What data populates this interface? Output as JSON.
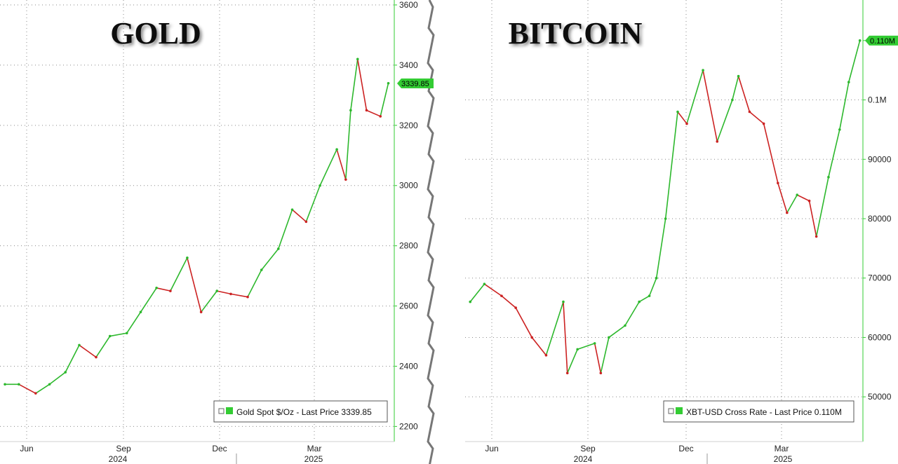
{
  "chart_data": [
    {
      "type": "line",
      "title": "GOLD",
      "legend": "Gold Spot $/Oz - Last Price 3339.85",
      "last_price_tag": "3339.85",
      "y_ticks": [
        "3600",
        "3400",
        "3200",
        "3000",
        "2800",
        "2600",
        "2400",
        "2200"
      ],
      "ylim": [
        2180,
        3600
      ],
      "x_ticks": [
        "Jun",
        "Sep",
        "Dec",
        "Mar"
      ],
      "years": [
        "2024",
        "2025"
      ],
      "series": [
        {
          "x": [
            "2024-05-01",
            "2024-05-15",
            "2024-06-01",
            "2024-06-15",
            "2024-07-01",
            "2024-07-15",
            "2024-08-01",
            "2024-08-15",
            "2024-09-01",
            "2024-09-15",
            "2024-10-01",
            "2024-10-15",
            "2024-11-01",
            "2024-11-15",
            "2024-12-01",
            "2024-12-15",
            "2025-01-01",
            "2025-01-15",
            "2025-02-01",
            "2025-02-15",
            "2025-03-01",
            "2025-03-15",
            "2025-04-01",
            "2025-04-10",
            "2025-04-15",
            "2025-04-22",
            "2025-05-01",
            "2025-05-15",
            "2025-05-23"
          ],
          "values": [
            2340,
            2340,
            2310,
            2340,
            2380,
            2470,
            2430,
            2500,
            2510,
            2580,
            2660,
            2650,
            2760,
            2580,
            2650,
            2640,
            2630,
            2720,
            2790,
            2920,
            2880,
            3000,
            3120,
            3020,
            3250,
            3420,
            3250,
            3230,
            3339.85
          ]
        }
      ],
      "colors": {
        "up": "#2db82d",
        "down": "#cc2222",
        "axis": "#33cc33",
        "tag": "#33cc33"
      }
    },
    {
      "type": "line",
      "title": "BITCOIN",
      "legend": "XBT-USD Cross Rate - Last Price 0.110M",
      "last_price_tag": "0.110M",
      "y_ticks": [
        "0.110M",
        "0.1M",
        "90000",
        "80000",
        "70000",
        "60000",
        "50000"
      ],
      "y_tick_values": [
        110000,
        100000,
        90000,
        80000,
        70000,
        60000,
        50000
      ],
      "ylim": [
        44000,
        116000
      ],
      "x_ticks": [
        "Jun",
        "Sep",
        "Dec",
        "Mar"
      ],
      "years": [
        "2024",
        "2025"
      ],
      "series": [
        {
          "x": [
            "2024-05-01",
            "2024-05-15",
            "2024-06-01",
            "2024-06-15",
            "2024-07-01",
            "2024-07-15",
            "2024-08-01",
            "2024-08-05",
            "2024-08-15",
            "2024-09-01",
            "2024-09-07",
            "2024-09-15",
            "2024-10-01",
            "2024-10-15",
            "2024-10-25",
            "2024-11-01",
            "2024-11-10",
            "2024-11-22",
            "2024-12-01",
            "2024-12-17",
            "2024-12-31",
            "2025-01-15",
            "2025-01-21",
            "2025-02-01",
            "2025-02-15",
            "2025-03-01",
            "2025-03-10",
            "2025-03-20",
            "2025-04-01",
            "2025-04-08",
            "2025-04-20",
            "2025-05-01",
            "2025-05-10",
            "2025-05-21"
          ],
          "values": [
            66000,
            69000,
            67000,
            65000,
            60000,
            57000,
            66000,
            54000,
            58000,
            59000,
            54000,
            60000,
            62000,
            66000,
            67000,
            70000,
            80000,
            98000,
            96000,
            105000,
            93000,
            100000,
            104000,
            98000,
            96000,
            86000,
            81000,
            84000,
            83000,
            77000,
            87000,
            95000,
            103000,
            110000
          ]
        }
      ],
      "colors": {
        "up": "#2db82d",
        "down": "#cc2222",
        "axis": "#33cc33",
        "tag": "#33cc33"
      }
    }
  ]
}
